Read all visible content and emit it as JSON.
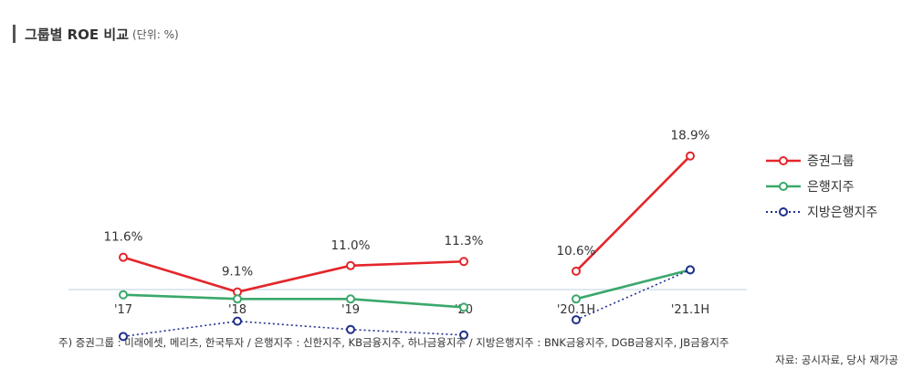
{
  "title": "그룹별 ROE 비교",
  "unit": "(단위: %)",
  "chart_data": {
    "type": "line",
    "categories": [
      "'17",
      "'18",
      "'19",
      "'20",
      "'20.1H",
      "'21.1H"
    ],
    "segments": [
      [
        0,
        3
      ],
      [
        4,
        5
      ]
    ],
    "series": [
      {
        "name": "증권그룹",
        "color": "#e3262b",
        "dash": "solid",
        "values": [
          11.6,
          9.1,
          11.0,
          11.3,
          10.6,
          18.9
        ],
        "labels": [
          "11.6%",
          "9.1%",
          "11.0%",
          "11.3%",
          "10.6%",
          "18.9%"
        ]
      },
      {
        "name": "은행지주",
        "color": "#3aa86b",
        "dash": "solid",
        "values": [
          8.9,
          8.6,
          8.6,
          8.0,
          8.6,
          10.7
        ]
      },
      {
        "name": "지방은행지주",
        "color": "#1f2f8c",
        "dash": "dotted",
        "values": [
          5.9,
          7.0,
          6.4,
          6.0,
          7.1,
          10.7
        ]
      }
    ],
    "ylim": [
      0,
      20
    ],
    "grid": false,
    "legend_position": "right"
  },
  "note": "주) 증권그룹 : 미래에셋, 메리츠, 한국투자 / 은행지주 : 신한지주, KB금융지주, 하나금융지주 / 지방은행지주 : BNK금융지주, DGB금융지주, JB금융지주",
  "source": "자료: 공시자료, 당사 재가공"
}
